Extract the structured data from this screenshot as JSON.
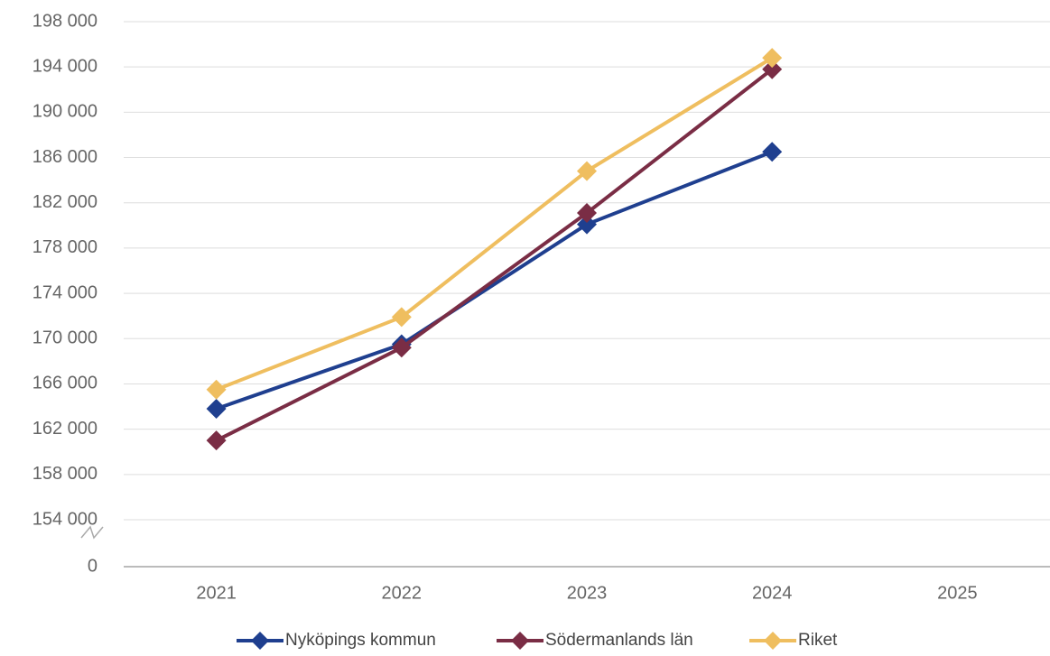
{
  "chart_data": {
    "type": "line",
    "categories": [
      "2021",
      "2022",
      "2023",
      "2024",
      "2025"
    ],
    "series": [
      {
        "name": "Nyköpings kommun",
        "color": "#1f3f8f",
        "values": [
          163800,
          169500,
          180100,
          186500,
          null
        ]
      },
      {
        "name": "Södermanlands län",
        "color": "#7a2d45",
        "values": [
          161000,
          169200,
          181100,
          193800,
          null
        ]
      },
      {
        "name": "Riket",
        "color": "#efbe5f",
        "values": [
          165500,
          171900,
          184800,
          194800,
          null
        ]
      }
    ],
    "ylim": [
      0,
      198000
    ],
    "y_break": [
      0,
      154000
    ],
    "yticks": [
      0,
      {
        "value": 154000,
        "label": "154 000"
      },
      {
        "value": 158000,
        "label": "158 000"
      },
      {
        "value": 162000,
        "label": "162 000"
      },
      {
        "value": 166000,
        "label": "166 000"
      },
      {
        "value": 170000,
        "label": "170 000"
      },
      {
        "value": 174000,
        "label": "174 000"
      },
      {
        "value": 178000,
        "label": "178 000"
      },
      {
        "value": 182000,
        "label": "182 000"
      },
      {
        "value": 186000,
        "label": "186 000"
      },
      {
        "value": 190000,
        "label": "190 000"
      },
      {
        "value": 194000,
        "label": "194 000"
      },
      {
        "value": 198000,
        "label": "198 000"
      }
    ],
    "grid": true,
    "legend": "bottom"
  }
}
